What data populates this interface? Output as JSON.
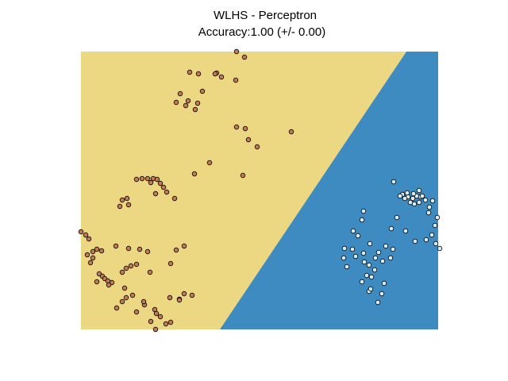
{
  "chart_data": {
    "type": "scatter",
    "title": "WLHS - Perceptron",
    "subtitle": "Accuracy:1.00 (+/- 0.00)",
    "xlabel": "",
    "ylabel": "",
    "xlim": [
      0,
      450
    ],
    "ylim": [
      0,
      350
    ],
    "axes_visible": false,
    "grid": false,
    "decision_regions": {
      "boundary": [
        [
          410,
          350
        ],
        [
          175,
          0
        ]
      ],
      "left_color": "#ecd882",
      "right_color": "#3e8bc1"
    },
    "series": [
      {
        "color": "#c47a52",
        "edge_color": "#000000",
        "points": [
          [
            196,
            350
          ],
          [
            206,
            343
          ],
          [
            137,
            324
          ],
          [
            148,
            322
          ],
          [
            171,
            323
          ],
          [
            195,
            314
          ],
          [
            177,
            318
          ],
          [
            169,
            322
          ],
          [
            120,
            286
          ],
          [
            135,
            288
          ],
          [
            147,
            285
          ],
          [
            125,
            297
          ],
          [
            132,
            282
          ],
          [
            144,
            277
          ],
          [
            153,
            300
          ],
          [
            196,
            255
          ],
          [
            207,
            253
          ],
          [
            265,
            249
          ],
          [
            222,
            230
          ],
          [
            211,
            239
          ],
          [
            70,
            189
          ],
          [
            77,
            190
          ],
          [
            84,
            190
          ],
          [
            91,
            190
          ],
          [
            96,
            189
          ],
          [
            88,
            185
          ],
          [
            100,
            184
          ],
          [
            104,
            179
          ],
          [
            108,
            173
          ],
          [
            94,
            171
          ],
          [
            58,
            165
          ],
          [
            52,
            163
          ],
          [
            60,
            157
          ],
          [
            49,
            155
          ],
          [
            118,
            165
          ],
          [
            143,
            196
          ],
          [
            162,
            210
          ],
          [
            204,
            194
          ],
          [
            0,
            123
          ],
          [
            6,
            119
          ],
          [
            44,
            105
          ],
          [
            60,
            102
          ],
          [
            84,
            98
          ],
          [
            8,
            94
          ],
          [
            15,
            98
          ],
          [
            20,
            101
          ],
          [
            26,
            99
          ],
          [
            12,
            84
          ],
          [
            23,
            70
          ],
          [
            27,
            67
          ],
          [
            30,
            64
          ],
          [
            34,
            61
          ],
          [
            39,
            59
          ],
          [
            52,
            72
          ],
          [
            57,
            77
          ],
          [
            63,
            80
          ],
          [
            70,
            82
          ],
          [
            87,
            72
          ],
          [
            74,
            101
          ],
          [
            35,
            56
          ],
          [
            55,
            52
          ],
          [
            57,
            40
          ],
          [
            65,
            43
          ],
          [
            45,
            27
          ],
          [
            52,
            35
          ],
          [
            80,
            31
          ],
          [
            93,
            25
          ],
          [
            70,
            22
          ],
          [
            95,
            20
          ],
          [
            100,
            16
          ],
          [
            107,
            7
          ],
          [
            113,
            9
          ],
          [
            88,
            10
          ],
          [
            94,
            0
          ],
          [
            79,
            35
          ],
          [
            112,
            40
          ],
          [
            124,
            38
          ],
          [
            130,
            45
          ],
          [
            140,
            43
          ],
          [
            124,
            37
          ],
          [
            130,
            105
          ],
          [
            120,
            100
          ],
          [
            113,
            83
          ],
          [
            20,
            60
          ],
          [
            15,
            90
          ],
          [
            10,
            114
          ]
        ]
      },
      {
        "color": "#d7ecf5",
        "edge_color": "#000000",
        "points": [
          [
            394,
            186
          ],
          [
            405,
            170
          ],
          [
            412,
            167
          ],
          [
            418,
            165
          ],
          [
            423,
            168
          ],
          [
            428,
            167
          ],
          [
            434,
            163
          ],
          [
            426,
            160
          ],
          [
            420,
            158
          ],
          [
            415,
            160
          ],
          [
            408,
            165
          ],
          [
            402,
            168
          ],
          [
            411,
            172
          ],
          [
            419,
            171
          ],
          [
            426,
            175
          ],
          [
            430,
            168
          ],
          [
            439,
            154
          ],
          [
            443,
            162
          ],
          [
            438,
            147
          ],
          [
            446,
            131
          ],
          [
            449,
            141
          ],
          [
            452,
            102
          ],
          [
            447,
            108
          ],
          [
            442,
            119
          ],
          [
            435,
            113
          ],
          [
            421,
            111
          ],
          [
            409,
            124
          ],
          [
            398,
            141
          ],
          [
            391,
            127
          ],
          [
            384,
            105
          ],
          [
            375,
            97
          ],
          [
            371,
            90
          ],
          [
            363,
            81
          ],
          [
            360,
            68
          ],
          [
            366,
            66
          ],
          [
            382,
            58
          ],
          [
            370,
            75
          ],
          [
            380,
            86
          ],
          [
            364,
            108
          ],
          [
            354,
            138
          ],
          [
            356,
            149
          ],
          [
            343,
            124
          ],
          [
            349,
            118
          ],
          [
            342,
            101
          ],
          [
            346,
            92
          ],
          [
            331,
            90
          ],
          [
            332,
            102
          ],
          [
            335,
            79
          ],
          [
            354,
            60
          ],
          [
            363,
            48
          ],
          [
            379,
            45
          ],
          [
            374,
            34
          ],
          [
            365,
            51
          ],
          [
            356,
            96
          ],
          [
            357,
            85
          ],
          [
            393,
            101
          ],
          [
            390,
            90
          ]
        ]
      }
    ]
  }
}
